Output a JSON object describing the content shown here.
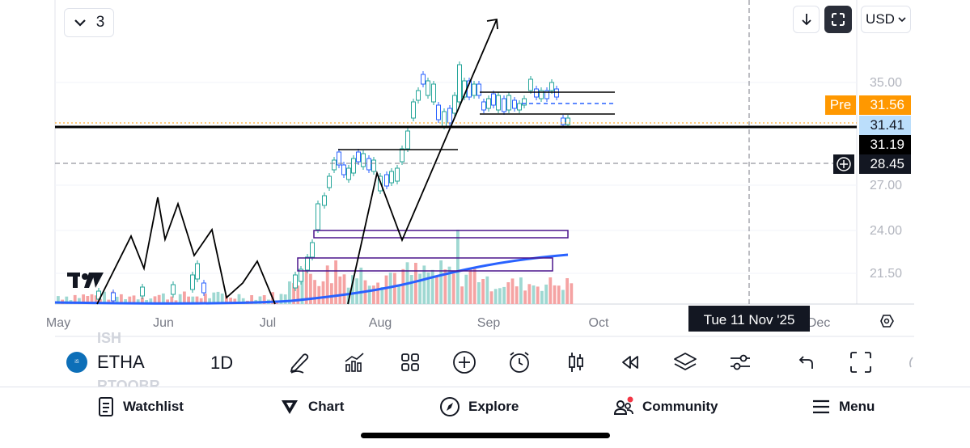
{
  "chart": {
    "collapse_count": "3",
    "currency": "USD",
    "price_axis": [
      "35.00",
      "27.00",
      "24.00",
      "21.50"
    ],
    "time_axis": [
      "May",
      "Jun",
      "Jul",
      "Aug",
      "Sep",
      "Oct",
      "Dec"
    ],
    "pre_label": "Pre",
    "pre_price": "31.56",
    "last_price": "31.41",
    "level_price": "31.19",
    "cursor_price": "28.45",
    "cursor_date": "Tue 11 Nov '25",
    "colors": {
      "up": "#26a69a",
      "down": "#ef5350",
      "pre": "#ff9800",
      "ma": "#2962ff"
    }
  },
  "symbol_bar": {
    "ghost_above": "ISH",
    "symbol": "ETHA",
    "interval": "1D",
    "ghost_below": "RTOOBR"
  },
  "toolbar_icons": [
    "pen-icon",
    "indicators-icon",
    "templates-icon",
    "add-icon",
    "alert-icon",
    "bar-type-icon",
    "replay-icon",
    "layers-icon",
    "settings-sliders-icon",
    "undo-icon",
    "fullscreen-icon"
  ],
  "nav": {
    "watchlist": "Watchlist",
    "chart": "Chart",
    "explore": "Explore",
    "community": "Community",
    "menu": "Menu"
  }
}
